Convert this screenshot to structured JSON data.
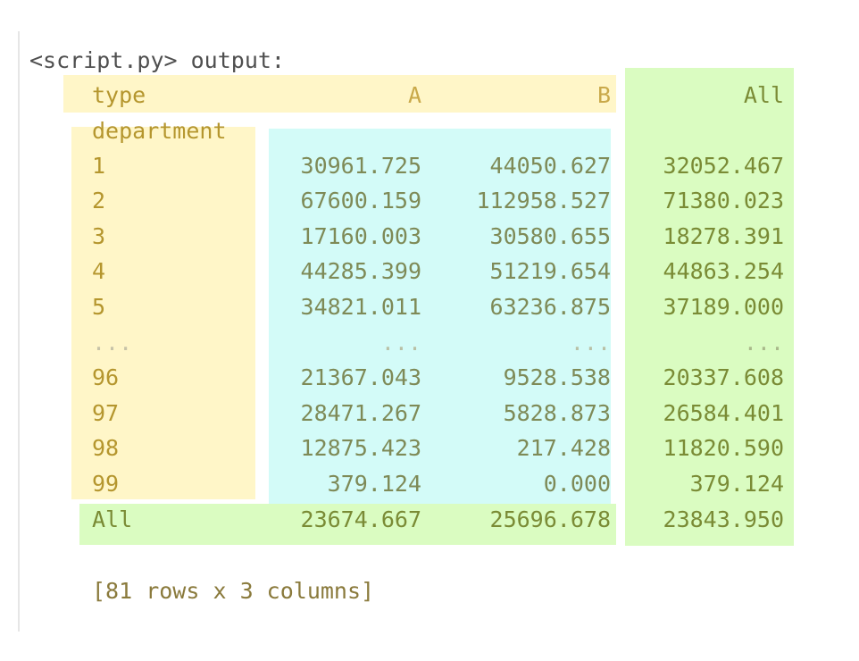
{
  "title": "<script.py> output:",
  "table": {
    "columns_label": "type",
    "index_label": "department",
    "columns": [
      "A",
      "B",
      "All"
    ],
    "rows": [
      {
        "index": "1",
        "A": "30961.725",
        "B": "44050.627",
        "All": "32052.467"
      },
      {
        "index": "2",
        "A": "67600.159",
        "B": "112958.527",
        "All": "71380.023"
      },
      {
        "index": "3",
        "A": "17160.003",
        "B": "30580.655",
        "All": "18278.391"
      },
      {
        "index": "4",
        "A": "44285.399",
        "B": "51219.654",
        "All": "44863.254"
      },
      {
        "index": "5",
        "A": "34821.011",
        "B": "63236.875",
        "All": "37189.000"
      },
      {
        "index": "...",
        "A": "...",
        "B": "...",
        "All": "..."
      },
      {
        "index": "96",
        "A": "21367.043",
        "B": "9528.538",
        "All": "20337.608"
      },
      {
        "index": "97",
        "A": "28471.267",
        "B": "5828.873",
        "All": "26584.401"
      },
      {
        "index": "98",
        "A": "12875.423",
        "B": "217.428",
        "All": "11820.590"
      },
      {
        "index": "99",
        "A": "379.124",
        "B": "0.000",
        "All": "379.124"
      }
    ],
    "total_row": {
      "index": "All",
      "A": "23674.667",
      "B": "25696.678",
      "All": "23843.950"
    }
  },
  "footer": "[81 rows x 3 columns]",
  "colors": {
    "header_highlight": "#fff6c8",
    "index_highlight": "#fff6c8",
    "values_highlight": "#d3fbf8",
    "all_highlight": "#dafcc1",
    "text_index": "#b5962e",
    "text_values": "#7e8a57",
    "text_all": "#7a8b35"
  }
}
